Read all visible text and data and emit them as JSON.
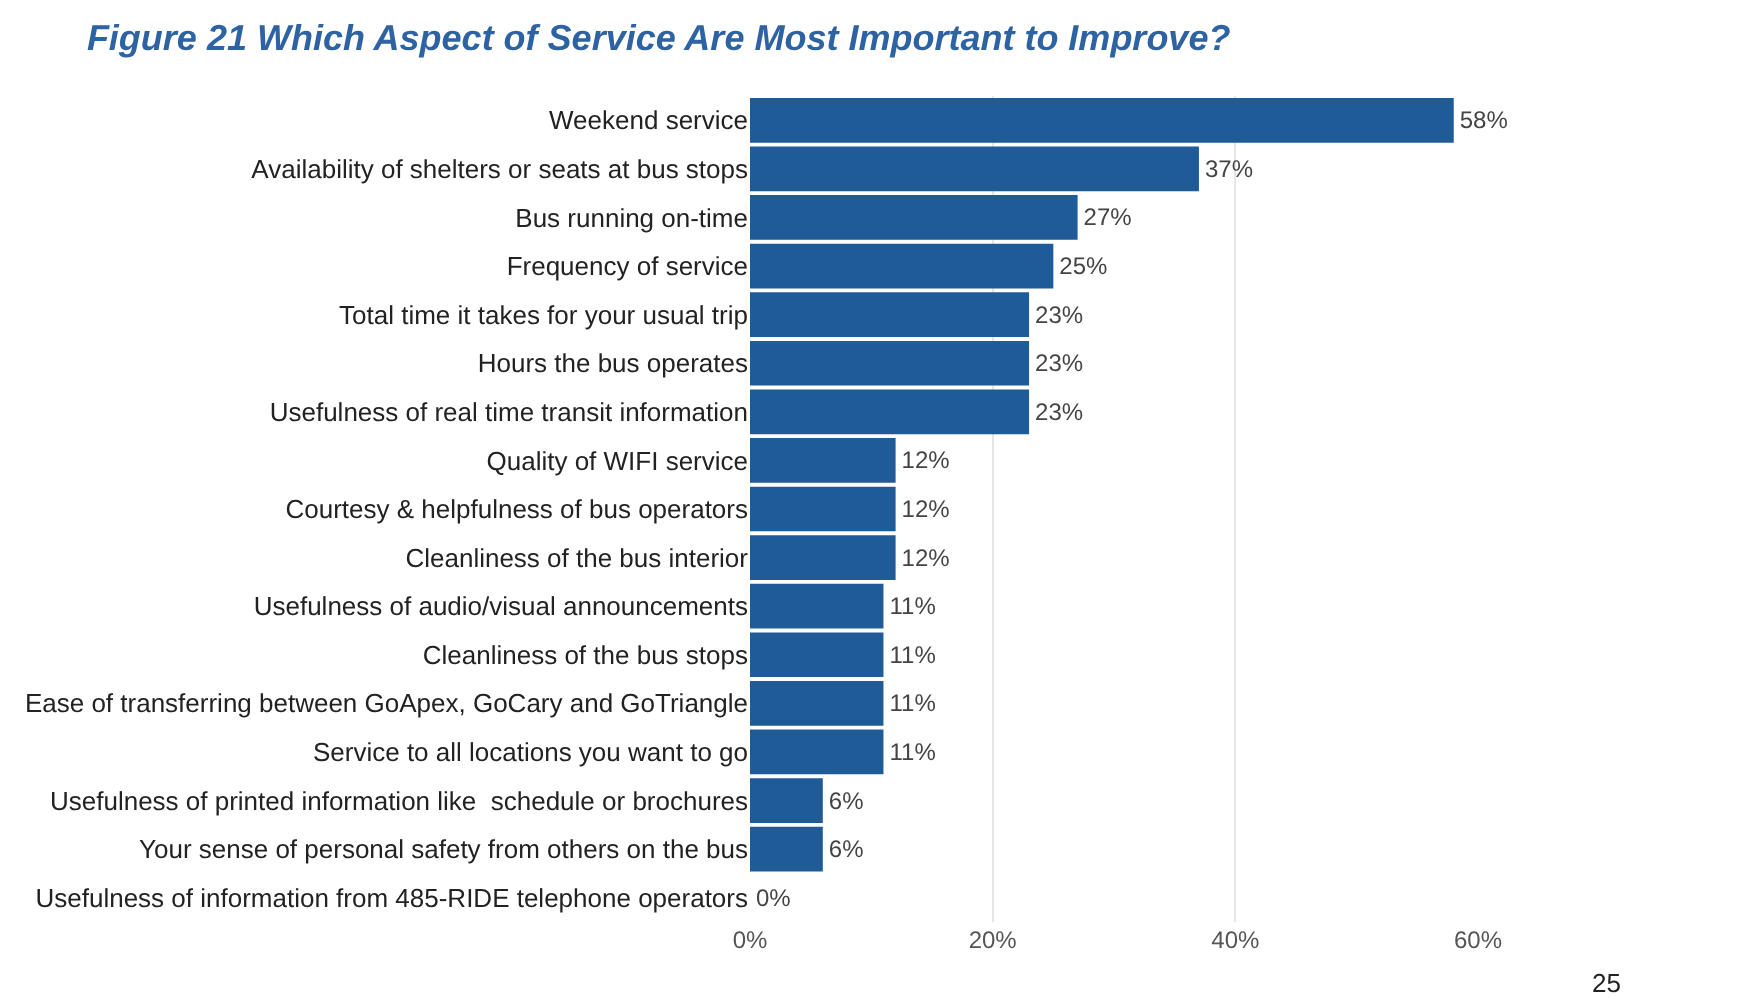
{
  "chart_data": {
    "type": "bar",
    "orientation": "horizontal",
    "title": "Figure 21 Which Aspect of Service Are Most Important to Improve?",
    "categories": [
      "Weekend service",
      "Availability of shelters or seats at bus stops",
      "Bus running on-time",
      "Frequency of service",
      "Total time it takes for your usual trip",
      "Hours the bus operates",
      "Usefulness of real time transit information",
      "Quality of WIFI service",
      "Courtesy & helpfulness of bus operators",
      "Cleanliness of the bus interior",
      "Usefulness of audio/visual announcements",
      "Cleanliness of the bus stops",
      "Ease of transferring between GoApex, GoCary and GoTriangle",
      "Service to all locations you want to go",
      "Usefulness of printed information like  schedule or brochures",
      "Your sense of personal safety from others on the bus",
      "Usefulness of information from 485-RIDE telephone operators"
    ],
    "values": [
      58,
      37,
      27,
      25,
      23,
      23,
      23,
      12,
      12,
      12,
      11,
      11,
      11,
      11,
      6,
      6,
      0
    ],
    "value_labels": [
      "58%",
      "37%",
      "27%",
      "25%",
      "23%",
      "23%",
      "23%",
      "12%",
      "12%",
      "12%",
      "11%",
      "11%",
      "11%",
      "11%",
      "6%",
      "6%",
      "0%"
    ],
    "color": "#1f5b97",
    "xlim": [
      0,
      60
    ],
    "xticks": [
      {
        "value": 0,
        "label": "0%"
      },
      {
        "value": 20,
        "label": "20%"
      },
      {
        "value": 40,
        "label": "40%"
      },
      {
        "value": 60,
        "label": "60%"
      }
    ],
    "grid": "x",
    "legend": false,
    "annotations": [
      "25"
    ]
  }
}
